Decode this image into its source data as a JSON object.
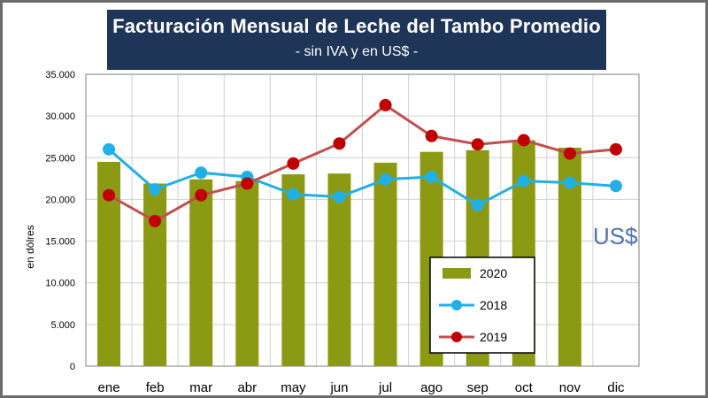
{
  "chart_data": {
    "type": "bar",
    "title": "Facturación Mensual de Leche del Tambo Promedio",
    "subtitle": "- sin IVA y en US$ -",
    "xlabel": "",
    "ylabel": "en dólres",
    "ylim": [
      0,
      35000
    ],
    "yticks": [
      0,
      5000,
      10000,
      15000,
      20000,
      25000,
      30000,
      35000
    ],
    "ytick_labels": [
      "0",
      "5.000",
      "10.000",
      "15.000",
      "20.000",
      "25.000",
      "30.000",
      "35.000"
    ],
    "categories": [
      "ene",
      "feb",
      "mar",
      "abr",
      "may",
      "jun",
      "jul",
      "ago",
      "sep",
      "oct",
      "nov",
      "dic"
    ],
    "series": [
      {
        "name": "2020",
        "type": "bar",
        "color": "#8b9a12",
        "values": [
          24500,
          21900,
          22400,
          22200,
          23000,
          23100,
          24400,
          25700,
          25900,
          27100,
          26200,
          null
        ]
      },
      {
        "name": "2018",
        "type": "line",
        "color": "#21b0e6",
        "values": [
          26000,
          21200,
          23200,
          22700,
          20600,
          20300,
          22400,
          22700,
          19300,
          22200,
          22000,
          21600
        ]
      },
      {
        "name": "2019",
        "type": "line",
        "color": "#c0504d",
        "marker_color": "#c00000",
        "values": [
          20500,
          17400,
          20500,
          21900,
          24300,
          26700,
          31300,
          27600,
          26600,
          27100,
          25500,
          26000
        ]
      }
    ],
    "legend": [
      "2020",
      "2018",
      "2019"
    ],
    "legend_position": "bottom-right",
    "annotation": "US$",
    "grid": true
  }
}
